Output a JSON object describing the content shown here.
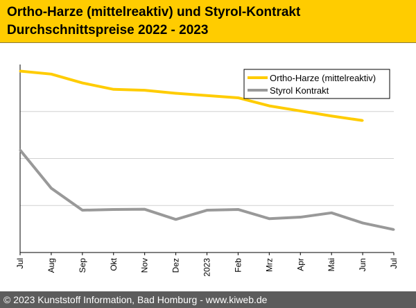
{
  "header": {
    "title_line1": "Ortho-Harze (mittelreaktiv) und Styrol-Kontrakt",
    "title_line2": "Durchschnittspreise 2022 - 2023"
  },
  "footer": {
    "text": "© 2023 Kunststoff Information, Bad Homburg - www.kiweb.de"
  },
  "colors": {
    "ortho": "#ffcc00",
    "styrol": "#999999",
    "header_bg": "#ffcc00",
    "footer_bg": "#5c5c5c"
  },
  "chart_data": {
    "type": "line",
    "categories": [
      "Jul",
      "Aug",
      "Sep",
      "Okt",
      "Nov",
      "Dez",
      "2023",
      "Feb",
      "Mrz",
      "Apr",
      "Mai",
      "Jun",
      "Jul"
    ],
    "series": [
      {
        "name": "Ortho-Harze (mittelreaktiv)",
        "color": "#ffcc00",
        "values": [
          96.5,
          94.9,
          90.2,
          86.8,
          86.3,
          84.7,
          83.5,
          82.3,
          78.0,
          75.3,
          72.6,
          70.2,
          null
        ]
      },
      {
        "name": "Styrol Kontrakt",
        "color": "#999999",
        "values": [
          54.5,
          34.2,
          22.5,
          22.9,
          23.0,
          17.6,
          22.5,
          22.9,
          18.0,
          18.8,
          21.1,
          15.7,
          12.2
        ]
      }
    ],
    "ylim": [
      0,
      100
    ],
    "y_gridlines": [
      25,
      50,
      75
    ],
    "y_tick_labels": false,
    "grid": true,
    "legend": "top-right"
  }
}
